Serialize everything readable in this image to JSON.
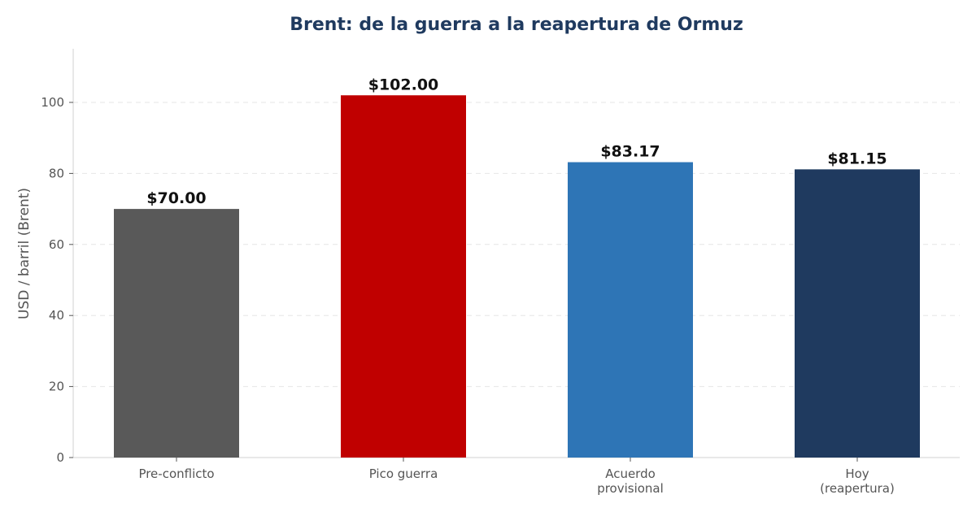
{
  "chart_data": {
    "type": "bar",
    "title": "Brent: de la guerra a la reapertura de Ormuz",
    "xlabel": "",
    "ylabel": "USD / barril (Brent)",
    "ylim": [
      0,
      115
    ],
    "yticks": [
      "0",
      "20",
      "40",
      "60",
      "80",
      "100"
    ],
    "grid": true,
    "categories": [
      [
        "Pre-conflicto"
      ],
      [
        "Pico guerra"
      ],
      [
        "Acuerdo",
        "provisional"
      ],
      [
        "Hoy",
        "(reapertura)"
      ]
    ],
    "values": [
      70.0,
      102.0,
      83.17,
      81.15
    ],
    "data_labels": [
      "$70.00",
      "$102.00",
      "$83.17",
      "$81.15"
    ],
    "colors": [
      "#595959",
      "#c00000",
      "#2e75b6",
      "#1f3a5f"
    ]
  }
}
